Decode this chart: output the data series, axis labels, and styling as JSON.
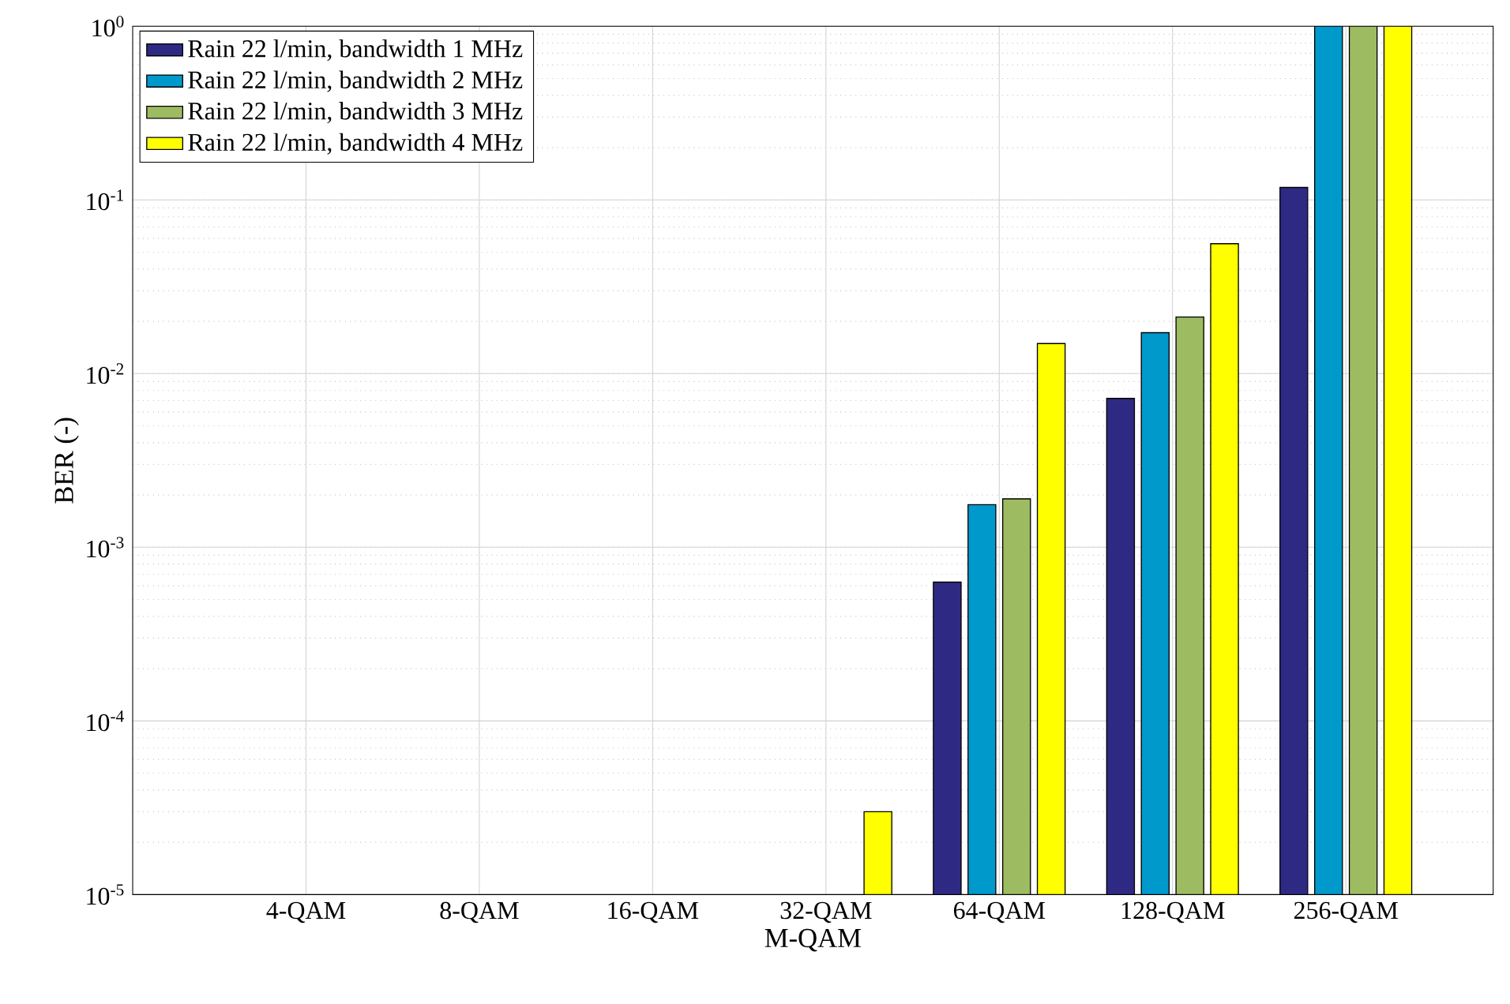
{
  "chart_data": {
    "type": "bar",
    "xlabel": "M-QAM",
    "ylabel": "BER (-)",
    "log": "y",
    "grid": true,
    "legend": "top left",
    "categories": [
      "4-QAM",
      "8-QAM",
      "16-QAM",
      "32-QAM",
      "64-QAM",
      "128-QAM",
      "256-QAM"
    ],
    "ylim": [
      1e-05,
      1
    ],
    "yticks": [
      {
        "value": 1e-05,
        "label": "10$^{-5}$"
      },
      {
        "value": 0.0001,
        "label": "10$^{-4}$"
      },
      {
        "value": 0.001,
        "label": "10$^{-3}$"
      },
      {
        "value": 0.01,
        "label": "10$^{-2}$"
      },
      {
        "value": 0.1,
        "label": "10$^{-1}$"
      },
      {
        "value": 1,
        "label": "10$^{0}$"
      }
    ],
    "series": [
      {
        "name": "Rain 22 l/min, bandwidth 1 MHz",
        "color": "#2e2a84",
        "values": [
          null,
          null,
          null,
          null,
          0.00063,
          0.0072,
          0.118
        ]
      },
      {
        "name": "Rain 22 l/min, bandwidth 2 MHz",
        "color": "#0099cc",
        "values": [
          null,
          null,
          null,
          null,
          0.00176,
          0.0172,
          1
        ]
      },
      {
        "name": "Rain 22 l/min, bandwidth 3 MHz",
        "color": "#9dbb61",
        "values": [
          null,
          null,
          null,
          null,
          0.0019,
          0.0212,
          1
        ]
      },
      {
        "name": "Rain 22 l/min, bandwidth 4 MHz",
        "color": "#ffff00",
        "values": [
          null,
          null,
          null,
          3e-05,
          0.0149,
          0.056,
          1
        ]
      }
    ]
  }
}
